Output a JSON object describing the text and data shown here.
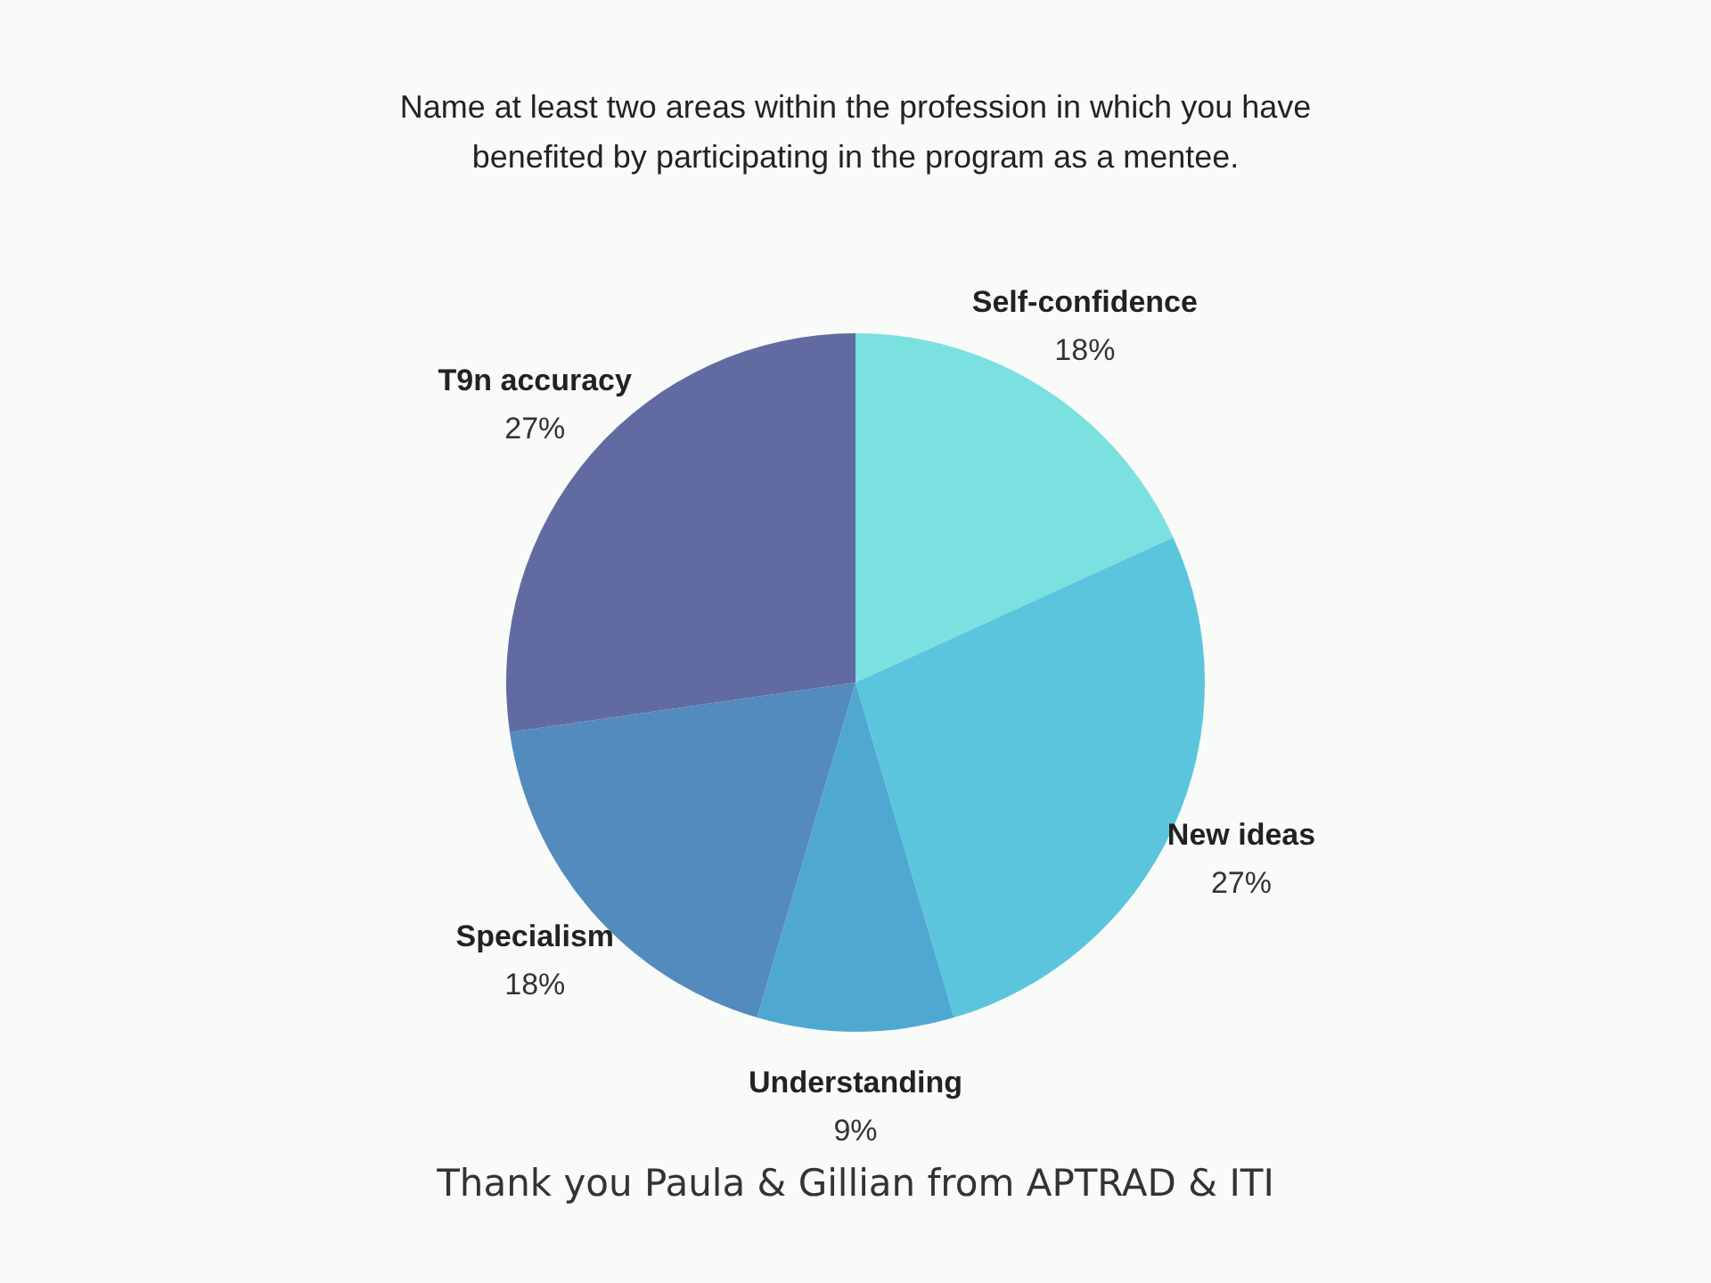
{
  "chart_data": {
    "type": "pie",
    "title": "Name at least two areas within the profession in which you have benefited by participating in the program as a mentee.",
    "categories": [
      "Self-confidence",
      "New ideas",
      "Understanding",
      "Specialism",
      "T9n accuracy"
    ],
    "values": [
      18,
      27,
      9,
      18,
      27
    ],
    "value_labels": [
      "18%",
      "27%",
      "9%",
      "18%",
      "27%"
    ],
    "colors": [
      "#7ae0e0",
      "#5bc5dd",
      "#4fa8d1",
      "#538bbf",
      "#626ba1"
    ],
    "annotations": [
      "Thank you Paula & Gillian from APTRAD & ITI"
    ]
  }
}
